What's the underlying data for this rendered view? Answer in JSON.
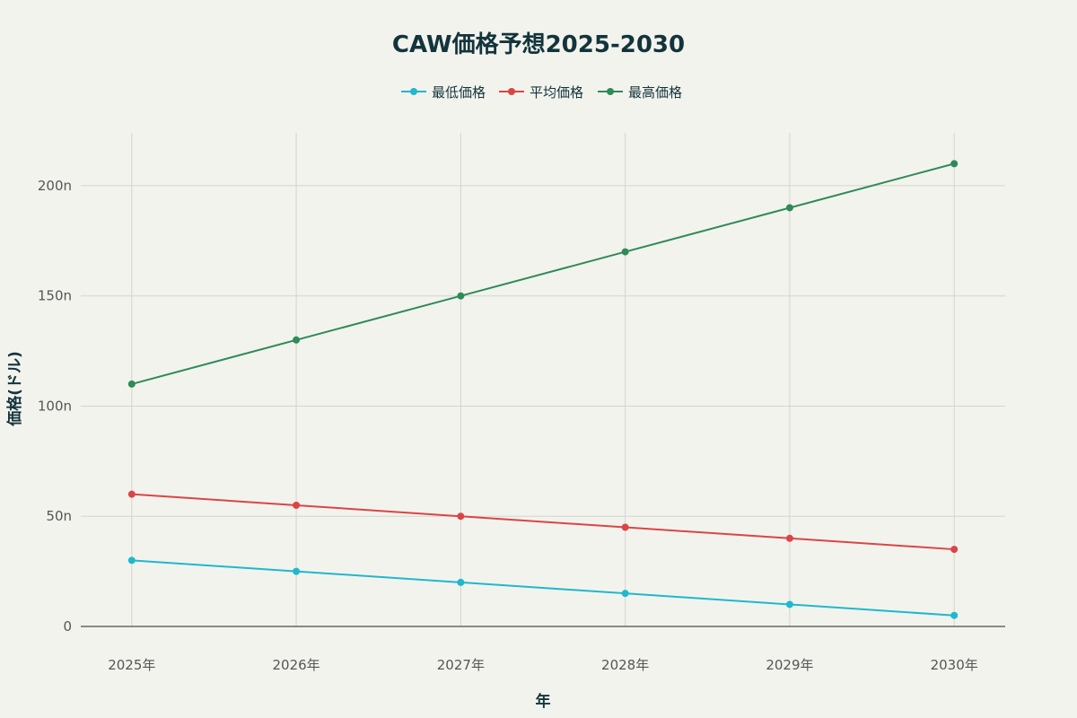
{
  "chart_data": {
    "type": "line",
    "title": "CAW価格予想2025-2030",
    "xlabel": "年",
    "ylabel": "価格(ドル)",
    "categories": [
      "2025年",
      "2026年",
      "2027年",
      "2028年",
      "2029年",
      "2030年"
    ],
    "x": [
      2025,
      2026,
      2027,
      2028,
      2029,
      2030
    ],
    "y_unit_suffix": "n",
    "yticks": [
      0,
      50,
      100,
      150,
      200
    ],
    "ytick_labels": [
      "0",
      "50n",
      "100n",
      "150n",
      "200n"
    ],
    "ylim": [
      0,
      224
    ],
    "xlim": [
      2024.69,
      2030.31
    ],
    "grid": true,
    "legend_placement": "top-center",
    "series": [
      {
        "name": "最低価格",
        "color": "#1FB8CD",
        "values": [
          30,
          25,
          20,
          15,
          10,
          5
        ]
      },
      {
        "name": "平均価格",
        "color": "#DB4545",
        "values": [
          60,
          55,
          50,
          45,
          40,
          35
        ]
      },
      {
        "name": "最高価格",
        "color": "#2E8B57",
        "values": [
          110,
          130,
          150,
          170,
          190,
          210
        ]
      }
    ]
  }
}
